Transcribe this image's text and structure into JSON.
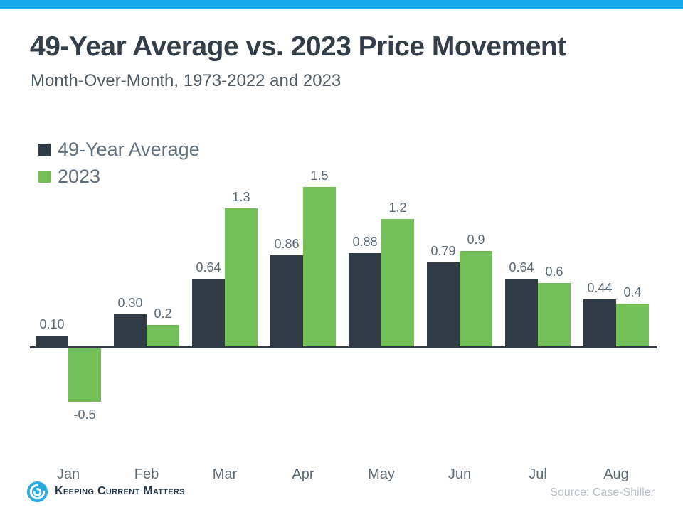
{
  "page": {
    "title": "49-Year Average vs. 2023 Price Movement",
    "subtitle": "Month-Over-Month, 1973-2022 and 2023",
    "source": "Source: Case-Shiller",
    "logo_text": "Keeping Current Matters"
  },
  "colors": {
    "topbar": "#17a9ec",
    "avg_bar": "#313b45",
    "year_bar": "#71bf56",
    "title": "#333e48",
    "subtitle": "#4d5a64",
    "legend_text": "#5f7080",
    "data_label": "#5a6a78",
    "month_label": "#5d6b77",
    "axis_line": "#313b45",
    "source_text": "#b7bec5",
    "logo_blue": "#29abe2",
    "logo_text_color": "#22384a"
  },
  "chart_data": {
    "type": "bar",
    "title": "49-Year Average vs. 2023 Price Movement",
    "subtitle": "Month-Over-Month, 1973-2022 and 2023",
    "categories": [
      "Jan",
      "Feb",
      "Mar",
      "Apr",
      "May",
      "Jun",
      "Jul",
      "Aug"
    ],
    "series": [
      {
        "name": "49-Year Average",
        "color": "#313b45",
        "values": [
          0.1,
          0.3,
          0.64,
          0.86,
          0.88,
          0.79,
          0.64,
          0.44
        ],
        "labels": [
          "0.10",
          "0.30",
          "0.64",
          "0.86",
          "0.88",
          "0.79",
          "0.64",
          "0.44"
        ]
      },
      {
        "name": "2023",
        "color": "#71bf56",
        "values": [
          -0.5,
          0.2,
          1.3,
          1.5,
          1.2,
          0.9,
          0.6,
          0.4
        ],
        "labels": [
          "-0.5",
          "0.2",
          "1.3",
          "1.5",
          "1.2",
          "0.9",
          "0.6",
          "0.4"
        ]
      }
    ],
    "ylim": [
      -0.75,
      1.75
    ],
    "grid": false,
    "legend_position": "top-left",
    "xlabel": "",
    "ylabel": "",
    "source": "Case-Shiller"
  }
}
